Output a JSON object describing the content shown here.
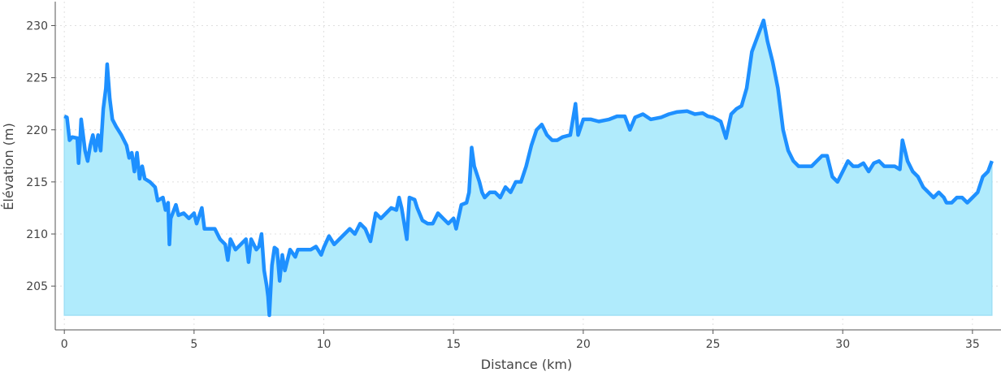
{
  "chart_data": {
    "type": "area",
    "title": "",
    "xlabel": "Distance (km)",
    "ylabel": "Élévation (m)",
    "xlim": [
      -0.35,
      36.1
    ],
    "ylim": [
      200.8,
      232.3
    ],
    "fill_baseline": 202.2,
    "grid": true,
    "legend": "none",
    "line_color": "#1e90ff",
    "fill_color": "#b0ebfc",
    "x_ticks": [
      "0",
      "5",
      "10",
      "15",
      "20",
      "25",
      "30",
      "35"
    ],
    "x_tick_values": [
      0,
      5,
      10,
      15,
      20,
      25,
      30,
      35
    ],
    "y_ticks": [
      "205",
      "210",
      "215",
      "220",
      "225",
      "230"
    ],
    "y_tick_values": [
      205,
      210,
      215,
      220,
      225,
      230
    ],
    "points": [
      [
        0,
        221.3
      ],
      [
        0.1,
        221.2
      ],
      [
        0.2,
        219
      ],
      [
        0.3,
        219.3
      ],
      [
        0.5,
        219.2
      ],
      [
        0.55,
        216.8
      ],
      [
        0.6,
        218.5
      ],
      [
        0.65,
        221
      ],
      [
        0.8,
        218
      ],
      [
        0.9,
        217
      ],
      [
        1.0,
        218.5
      ],
      [
        1.1,
        219.5
      ],
      [
        1.2,
        218
      ],
      [
        1.3,
        219.5
      ],
      [
        1.4,
        218
      ],
      [
        1.5,
        222
      ],
      [
        1.6,
        224
      ],
      [
        1.65,
        226.3
      ],
      [
        1.75,
        223
      ],
      [
        1.85,
        221
      ],
      [
        2.0,
        220.3
      ],
      [
        2.2,
        219.5
      ],
      [
        2.4,
        218.5
      ],
      [
        2.5,
        217.3
      ],
      [
        2.6,
        217.8
      ],
      [
        2.7,
        216
      ],
      [
        2.8,
        217.8
      ],
      [
        2.9,
        215.3
      ],
      [
        3.0,
        216.5
      ],
      [
        3.1,
        215.3
      ],
      [
        3.3,
        215
      ],
      [
        3.5,
        214.5
      ],
      [
        3.6,
        213.2
      ],
      [
        3.8,
        213.5
      ],
      [
        3.9,
        212.3
      ],
      [
        4.0,
        213
      ],
      [
        4.05,
        209
      ],
      [
        4.1,
        211.5
      ],
      [
        4.3,
        212.8
      ],
      [
        4.4,
        211.8
      ],
      [
        4.6,
        212
      ],
      [
        4.8,
        211.5
      ],
      [
        5.0,
        212
      ],
      [
        5.1,
        211
      ],
      [
        5.3,
        212.5
      ],
      [
        5.4,
        210.5
      ],
      [
        5.6,
        210.5
      ],
      [
        5.8,
        210.5
      ],
      [
        6.0,
        209.5
      ],
      [
        6.2,
        209
      ],
      [
        6.3,
        207.5
      ],
      [
        6.4,
        209.5
      ],
      [
        6.6,
        208.5
      ],
      [
        6.8,
        209
      ],
      [
        7.0,
        209.5
      ],
      [
        7.1,
        207.3
      ],
      [
        7.2,
        209.5
      ],
      [
        7.4,
        208.5
      ],
      [
        7.5,
        208.8
      ],
      [
        7.6,
        210
      ],
      [
        7.7,
        206.5
      ],
      [
        7.8,
        205
      ],
      [
        7.85,
        204
      ],
      [
        7.9,
        202.2
      ],
      [
        8.0,
        207
      ],
      [
        8.1,
        208.7
      ],
      [
        8.2,
        208.5
      ],
      [
        8.3,
        205.5
      ],
      [
        8.4,
        208
      ],
      [
        8.5,
        206.5
      ],
      [
        8.7,
        208.5
      ],
      [
        8.9,
        207.8
      ],
      [
        9.0,
        208.5
      ],
      [
        9.3,
        208.5
      ],
      [
        9.5,
        208.5
      ],
      [
        9.7,
        208.8
      ],
      [
        9.9,
        208
      ],
      [
        10.0,
        208.7
      ],
      [
        10.2,
        209.8
      ],
      [
        10.4,
        209
      ],
      [
        10.6,
        209.5
      ],
      [
        10.8,
        210
      ],
      [
        11.0,
        210.5
      ],
      [
        11.2,
        210
      ],
      [
        11.4,
        211
      ],
      [
        11.6,
        210.5
      ],
      [
        11.8,
        209.3
      ],
      [
        12.0,
        212
      ],
      [
        12.2,
        211.5
      ],
      [
        12.4,
        212
      ],
      [
        12.6,
        212.5
      ],
      [
        12.8,
        212.3
      ],
      [
        12.9,
        213.5
      ],
      [
        13.0,
        212.5
      ],
      [
        13.2,
        209.5
      ],
      [
        13.3,
        213.5
      ],
      [
        13.5,
        213.3
      ],
      [
        13.6,
        212.5
      ],
      [
        13.8,
        211.3
      ],
      [
        14.0,
        211
      ],
      [
        14.2,
        211
      ],
      [
        14.4,
        212
      ],
      [
        14.6,
        211.5
      ],
      [
        14.8,
        211
      ],
      [
        15.0,
        211.5
      ],
      [
        15.1,
        210.5
      ],
      [
        15.3,
        212.8
      ],
      [
        15.5,
        213
      ],
      [
        15.6,
        214
      ],
      [
        15.7,
        218.3
      ],
      [
        15.8,
        216.5
      ],
      [
        16.0,
        215
      ],
      [
        16.1,
        214
      ],
      [
        16.2,
        213.5
      ],
      [
        16.4,
        214
      ],
      [
        16.6,
        214
      ],
      [
        16.8,
        213.5
      ],
      [
        17.0,
        214.5
      ],
      [
        17.2,
        214
      ],
      [
        17.4,
        215
      ],
      [
        17.6,
        215
      ],
      [
        17.8,
        216.5
      ],
      [
        18.0,
        218.5
      ],
      [
        18.2,
        220
      ],
      [
        18.4,
        220.5
      ],
      [
        18.6,
        219.5
      ],
      [
        18.8,
        219
      ],
      [
        19.0,
        219
      ],
      [
        19.2,
        219.3
      ],
      [
        19.5,
        219.5
      ],
      [
        19.7,
        222.5
      ],
      [
        19.8,
        219.5
      ],
      [
        20.0,
        221
      ],
      [
        20.3,
        221
      ],
      [
        20.6,
        220.8
      ],
      [
        21.0,
        221
      ],
      [
        21.3,
        221.3
      ],
      [
        21.6,
        221.3
      ],
      [
        21.8,
        220
      ],
      [
        22.0,
        221.2
      ],
      [
        22.3,
        221.5
      ],
      [
        22.6,
        221
      ],
      [
        23.0,
        221.2
      ],
      [
        23.3,
        221.5
      ],
      [
        23.6,
        221.7
      ],
      [
        24.0,
        221.8
      ],
      [
        24.3,
        221.5
      ],
      [
        24.6,
        221.6
      ],
      [
        24.8,
        221.3
      ],
      [
        25.0,
        221.2
      ],
      [
        25.3,
        220.8
      ],
      [
        25.5,
        219.2
      ],
      [
        25.7,
        221.5
      ],
      [
        25.9,
        222
      ],
      [
        26.1,
        222.3
      ],
      [
        26.3,
        224
      ],
      [
        26.5,
        227.5
      ],
      [
        26.8,
        229.5
      ],
      [
        26.95,
        230.5
      ],
      [
        27.1,
        228.5
      ],
      [
        27.3,
        226.5
      ],
      [
        27.5,
        224
      ],
      [
        27.7,
        220
      ],
      [
        27.9,
        218
      ],
      [
        28.1,
        217
      ],
      [
        28.3,
        216.5
      ],
      [
        28.5,
        216.5
      ],
      [
        28.8,
        216.5
      ],
      [
        29.0,
        217
      ],
      [
        29.2,
        217.5
      ],
      [
        29.4,
        217.5
      ],
      [
        29.6,
        215.5
      ],
      [
        29.8,
        215
      ],
      [
        30.0,
        216
      ],
      [
        30.2,
        217
      ],
      [
        30.4,
        216.5
      ],
      [
        30.6,
        216.5
      ],
      [
        30.8,
        216.8
      ],
      [
        31.0,
        216
      ],
      [
        31.2,
        216.8
      ],
      [
        31.4,
        217
      ],
      [
        31.6,
        216.5
      ],
      [
        31.8,
        216.5
      ],
      [
        32.0,
        216.5
      ],
      [
        32.2,
        216.2
      ],
      [
        32.3,
        219
      ],
      [
        32.5,
        217
      ],
      [
        32.7,
        216
      ],
      [
        32.9,
        215.5
      ],
      [
        33.1,
        214.5
      ],
      [
        33.3,
        214
      ],
      [
        33.5,
        213.5
      ],
      [
        33.7,
        214
      ],
      [
        33.9,
        213.5
      ],
      [
        34.0,
        213
      ],
      [
        34.2,
        213
      ],
      [
        34.4,
        213.5
      ],
      [
        34.6,
        213.5
      ],
      [
        34.8,
        213
      ],
      [
        35.0,
        213.5
      ],
      [
        35.2,
        214
      ],
      [
        35.4,
        215.5
      ],
      [
        35.6,
        216
      ],
      [
        35.75,
        217
      ]
    ]
  }
}
